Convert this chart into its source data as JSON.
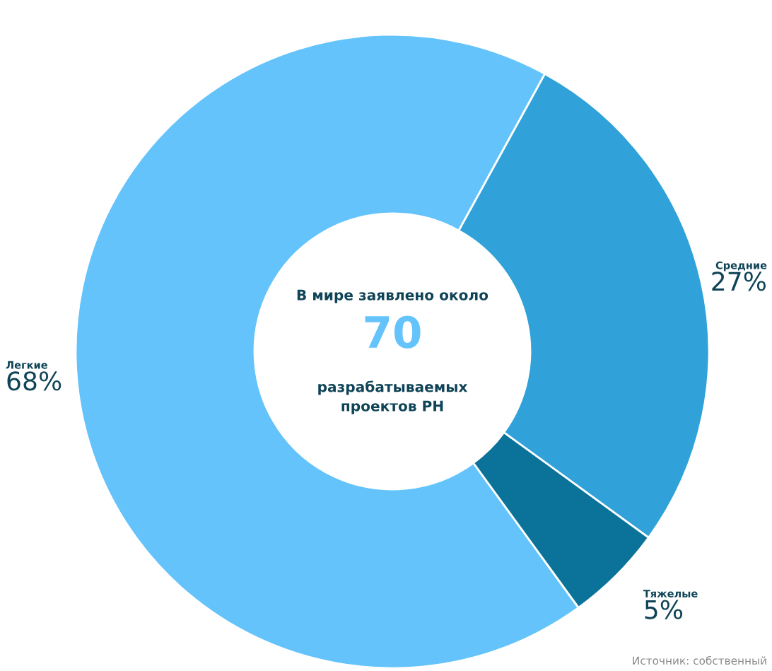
{
  "chart_data": {
    "type": "donut",
    "categories": [
      "Легкие",
      "Средние",
      "Тяжелые"
    ],
    "values": [
      68,
      27,
      5
    ],
    "value_labels": [
      "68%",
      "27%",
      "5%"
    ],
    "colors": [
      "#64c3fb",
      "#30a2d9",
      "#0b7399"
    ],
    "annotations": [
      "В мире заявлено около",
      "70",
      "разрабатываемых\nпроектов РН",
      "Источник: собственный"
    ]
  }
}
